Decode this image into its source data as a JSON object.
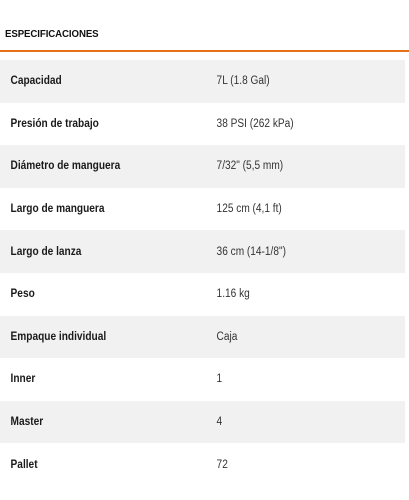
{
  "header": {
    "title": "ESPECIFICACIONES",
    "accent_color": "#e8701a"
  },
  "specs": [
    {
      "label": "Capacidad",
      "value": "7L (1.8 Gal)"
    },
    {
      "label": "Presión de trabajo",
      "value": "38 PSI (262 kPa)"
    },
    {
      "label": "Diámetro de manguera",
      "value": "7/32\" (5,5 mm)"
    },
    {
      "label": "Largo de manguera",
      "value": "125 cm (4,1 ft)"
    },
    {
      "label": "Largo de lanza",
      "value": "36 cm (14-1/8\")"
    },
    {
      "label": "Peso",
      "value": "1.16 kg"
    },
    {
      "label": "Empaque individual",
      "value": "Caja"
    },
    {
      "label": "Inner",
      "value": "1"
    },
    {
      "label": "Master",
      "value": "4"
    },
    {
      "label": "Pallet",
      "value": "72"
    }
  ]
}
